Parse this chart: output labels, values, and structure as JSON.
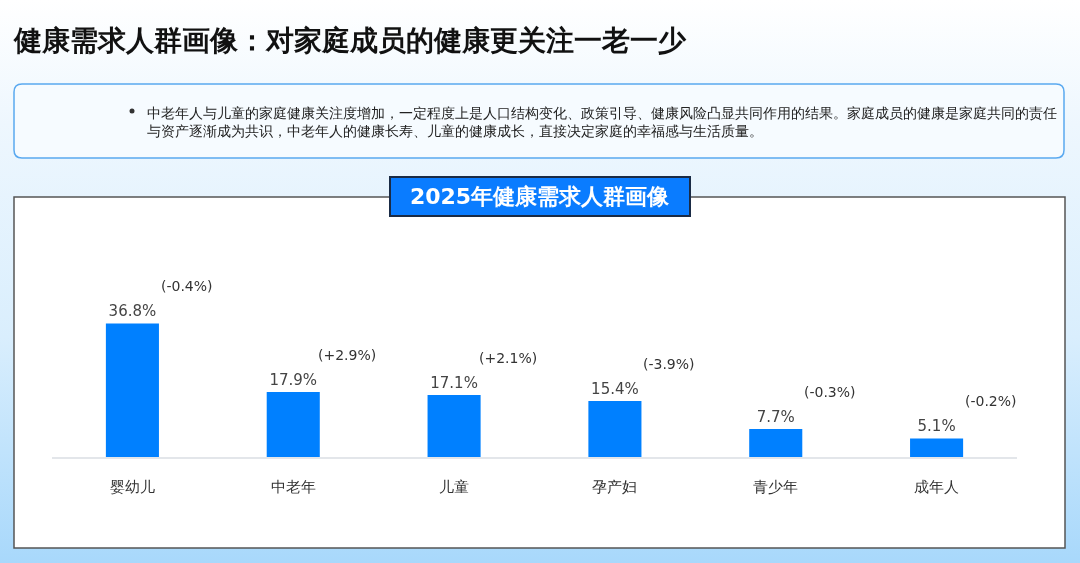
{
  "chart_data": {
    "type": "bar",
    "title": "健康需求人群画像：对家庭成员的健康更关注一老一少",
    "subtitle": "2025年健康需求人群画像",
    "categories": [
      "婴幼儿",
      "中老年",
      "儿童",
      "孕产妇",
      "青少年",
      "成年人"
    ],
    "values": [
      36.8,
      17.9,
      17.1,
      15.4,
      7.7,
      5.1
    ],
    "value_labels": [
      "36.8%",
      "17.9%",
      "17.1%",
      "15.4%",
      "7.7%",
      "5.1%"
    ],
    "color": "#0080ff",
    "tick_labels": "x",
    "annotations": [
      "中老年人与儿童的家庭健康关注度增加，一定程度上是人口结构变化、政策引导、健康风险凸显共同作用的结果。家庭成员的健康是家庭共同的责任与资产逐渐成为共识，中老年人的健康长寿、儿童的健康成长，直接决定家庭的幸福感与生活质量。",
      {
        "text": "(-0.4%)",
        "x": "婴幼儿",
        "y": 36.8
      },
      {
        "text": "(+2.9%)",
        "x": "中老年",
        "y": 17.9
      },
      {
        "text": "(+2.1%)",
        "x": "儿童",
        "y": 17.1
      },
      {
        "text": "(-3.9%)",
        "x": "孕产妇",
        "y": 15.4
      },
      {
        "text": "(-0.3%)",
        "x": "青少年",
        "y": 7.7
      },
      {
        "text": "(-0.2%)",
        "x": "成年人",
        "y": 5.1
      }
    ]
  }
}
